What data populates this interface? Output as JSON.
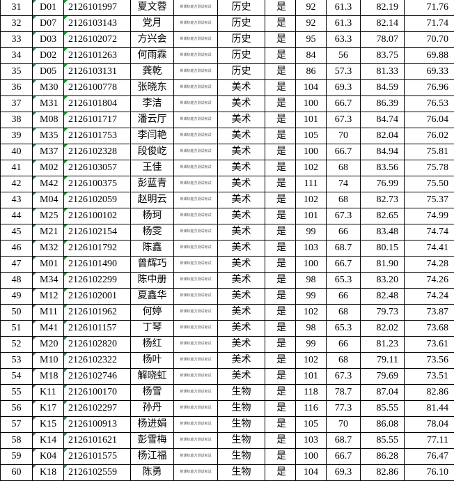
{
  "table": {
    "rows": [
      [
        "31",
        "D01",
        "2126101997",
        "夏文蓉",
        "新课标能力测试考试",
        "历史",
        "是",
        "92",
        "61.3",
        "82.19",
        "71.76"
      ],
      [
        "32",
        "D07",
        "2126103143",
        "党月",
        "新课标能力测试考试",
        "历史",
        "是",
        "92",
        "61.3",
        "82.14",
        "71.74"
      ],
      [
        "33",
        "D03",
        "2126102072",
        "方兴会",
        "新课标能力测试考试",
        "历史",
        "是",
        "95",
        "63.3",
        "78.07",
        "70.70"
      ],
      [
        "34",
        "D02",
        "2126101263",
        "何雨霖",
        "新课标能力测试考试",
        "历史",
        "是",
        "84",
        "56",
        "83.75",
        "69.88"
      ],
      [
        "35",
        "D05",
        "2126103131",
        "龚乾",
        "新课标能力测试考试",
        "历史",
        "是",
        "86",
        "57.3",
        "81.33",
        "69.33"
      ],
      [
        "36",
        "M30",
        "2126100778",
        "张晓东",
        "新课标能力测试考试",
        "美术",
        "是",
        "104",
        "69.3",
        "84.59",
        "76.96"
      ],
      [
        "37",
        "M31",
        "2126101804",
        "李洁",
        "新课标能力测试考试",
        "美术",
        "是",
        "100",
        "66.7",
        "86.39",
        "76.53"
      ],
      [
        "38",
        "M08",
        "2126101717",
        "潘云厅",
        "新课标能力测试考试",
        "美术",
        "是",
        "101",
        "67.3",
        "84.74",
        "76.04"
      ],
      [
        "39",
        "M35",
        "2126101753",
        "李闫艳",
        "新课标能力测试考试",
        "美术",
        "是",
        "105",
        "70",
        "82.04",
        "76.02"
      ],
      [
        "40",
        "M37",
        "2126102328",
        "段俊屹",
        "新课标能力测试考试",
        "美术",
        "是",
        "100",
        "66.7",
        "84.94",
        "75.81"
      ],
      [
        "41",
        "M02",
        "2126103057",
        "王佳",
        "新课标能力测试考试",
        "美术",
        "是",
        "102",
        "68",
        "83.56",
        "75.78"
      ],
      [
        "42",
        "M42",
        "2126100375",
        "彭蓝青",
        "新课标能力测试考试",
        "美术",
        "是",
        "111",
        "74",
        "76.99",
        "75.50"
      ],
      [
        "43",
        "M04",
        "2126102059",
        "赵明云",
        "新课标能力测试考试",
        "美术",
        "是",
        "102",
        "68",
        "82.73",
        "75.37"
      ],
      [
        "44",
        "M25",
        "2126100102",
        "杨珂",
        "新课标能力测试考试",
        "美术",
        "是",
        "101",
        "67.3",
        "82.65",
        "74.99"
      ],
      [
        "45",
        "M21",
        "2126102154",
        "杨雯",
        "新课标能力测试考试",
        "美术",
        "是",
        "99",
        "66",
        "83.48",
        "74.74"
      ],
      [
        "46",
        "M32",
        "2126101792",
        "陈鑫",
        "新课标能力测试考试",
        "美术",
        "是",
        "103",
        "68.7",
        "80.15",
        "74.41"
      ],
      [
        "47",
        "M01",
        "2126101490",
        "曾辉巧",
        "新课标能力测试考试",
        "美术",
        "是",
        "100",
        "66.7",
        "81.90",
        "74.28"
      ],
      [
        "48",
        "M34",
        "2126102299",
        "陈中册",
        "新课标能力测试考试",
        "美术",
        "是",
        "98",
        "65.3",
        "83.20",
        "74.26"
      ],
      [
        "49",
        "M12",
        "2126102001",
        "夏鑫华",
        "新课标能力测试考试",
        "美术",
        "是",
        "99",
        "66",
        "82.48",
        "74.24"
      ],
      [
        "50",
        "M11",
        "2126101962",
        "何婷",
        "新课标能力测试考试",
        "美术",
        "是",
        "102",
        "68",
        "79.73",
        "73.87"
      ],
      [
        "51",
        "M41",
        "2126101157",
        "丁琴",
        "新课标能力测试考试",
        "美术",
        "是",
        "98",
        "65.3",
        "82.02",
        "73.68"
      ],
      [
        "52",
        "M20",
        "2126102820",
        "杨红",
        "新课标能力测试考试",
        "美术",
        "是",
        "99",
        "66",
        "81.23",
        "73.61"
      ],
      [
        "53",
        "M10",
        "2126102322",
        "杨叶",
        "新课标能力测试考试",
        "美术",
        "是",
        "102",
        "68",
        "79.11",
        "73.56"
      ],
      [
        "54",
        "M18",
        "2126102746",
        "解晓虹",
        "新课标能力测试考试",
        "美术",
        "是",
        "101",
        "67.3",
        "79.69",
        "73.51"
      ],
      [
        "55",
        "K11",
        "2126100170",
        "杨雪",
        "新课标能力测试考试",
        "生物",
        "是",
        "118",
        "78.7",
        "87.04",
        "82.86"
      ],
      [
        "56",
        "K17",
        "2126102297",
        "孙丹",
        "新课标能力测试考试",
        "生物",
        "是",
        "116",
        "77.3",
        "85.55",
        "81.44"
      ],
      [
        "57",
        "K15",
        "2126100913",
        "杨进娟",
        "新课标能力测试考试",
        "生物",
        "是",
        "105",
        "70",
        "86.08",
        "78.04"
      ],
      [
        "58",
        "K14",
        "2126101621",
        "彭雪梅",
        "新课标能力测试考试",
        "生物",
        "是",
        "103",
        "68.7",
        "85.55",
        "77.11"
      ],
      [
        "59",
        "K04",
        "2126101575",
        "杨江福",
        "新课标能力测试考试",
        "生物",
        "是",
        "100",
        "66.7",
        "86.28",
        "76.47"
      ],
      [
        "60",
        "K18",
        "2126102559",
        "陈勇",
        "新课标能力测试考试",
        "生物",
        "是",
        "104",
        "69.3",
        "82.86",
        "76.10"
      ]
    ]
  }
}
